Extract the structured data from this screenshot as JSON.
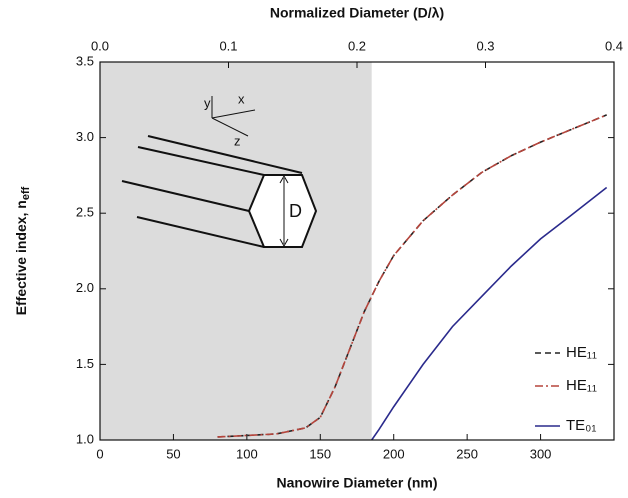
{
  "chart_data": {
    "type": "line",
    "xlabel": "Nanowire Diameter (nm)",
    "x2label": "Normalized Diameter (D/λ)",
    "ylabel": {
      "text": "Effective index, n",
      "subscript": "eff"
    },
    "xlim": [
      0,
      350
    ],
    "xticks": [
      0,
      50,
      100,
      150,
      200,
      250,
      300
    ],
    "x2lim": [
      0,
      0.4
    ],
    "x2ticks": [
      {
        "value": 0,
        "label": "0.0"
      },
      0.1,
      0.2,
      0.3,
      0.4
    ],
    "ylim": [
      1.0,
      3.5
    ],
    "yticks": [
      {
        "value": 1.0,
        "label": "1.0"
      },
      1.5,
      {
        "value": 2.0,
        "label": "2.0"
      },
      2.5,
      {
        "value": 3.0,
        "label": "3.0"
      },
      3.5
    ],
    "shaded_xlim": [
      0,
      185
    ],
    "inset_labels": [
      "y",
      "x",
      "z",
      "D"
    ],
    "series": [
      {
        "name": "HE₁₁",
        "color": "#222222",
        "dash": "6,4",
        "x": [
          80,
          100,
          120,
          140,
          150,
          160,
          170,
          180,
          190,
          200,
          220,
          240,
          260,
          280,
          300,
          320,
          345
        ],
        "values": [
          1.02,
          1.03,
          1.04,
          1.08,
          1.15,
          1.35,
          1.6,
          1.85,
          2.05,
          2.22,
          2.45,
          2.62,
          2.77,
          2.88,
          2.97,
          3.05,
          3.15
        ]
      },
      {
        "name": "HE₁₁",
        "color": "#b5453c",
        "dash": "8,3,2,3",
        "x": [
          80,
          100,
          120,
          140,
          150,
          160,
          170,
          180,
          190,
          200,
          220,
          240,
          260,
          280,
          300,
          320,
          345
        ],
        "values": [
          1.02,
          1.03,
          1.04,
          1.08,
          1.15,
          1.35,
          1.6,
          1.85,
          2.05,
          2.22,
          2.45,
          2.62,
          2.77,
          2.88,
          2.97,
          3.05,
          3.15
        ]
      },
      {
        "name": "TE₀₁",
        "color": "#2a2a8c",
        "dash": "",
        "x": [
          185,
          190,
          200,
          220,
          240,
          260,
          280,
          300,
          320,
          345
        ],
        "values": [
          1.0,
          1.07,
          1.22,
          1.5,
          1.75,
          1.95,
          2.15,
          2.33,
          2.48,
          2.67
        ]
      }
    ]
  }
}
